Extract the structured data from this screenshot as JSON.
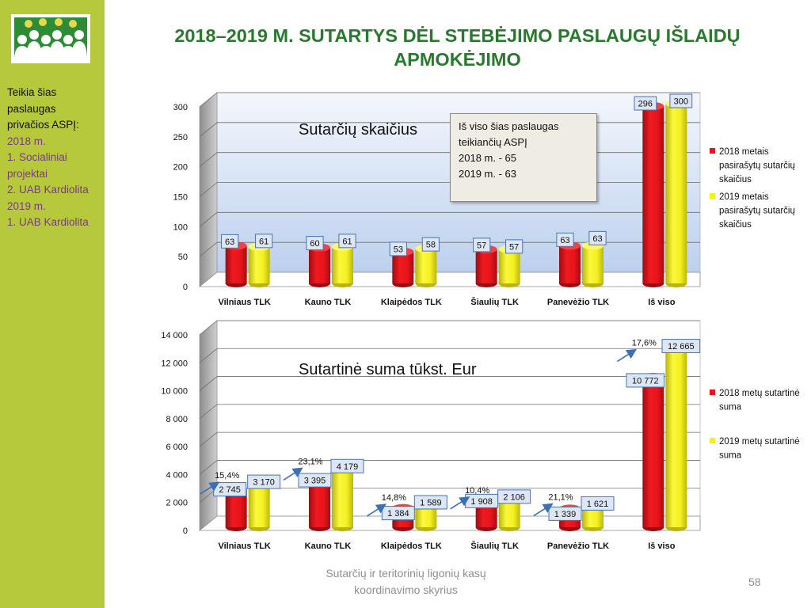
{
  "slide": {
    "title_line1": "2018–2019 M. SUTARTYS DĖL STEBĖJIMO PASLAUGŲ IŠLAIDŲ",
    "title_line2": "APMOKĖJIMO",
    "sidebar_lines": [
      {
        "text": "Teikia šias",
        "style": "black"
      },
      {
        "text": "paslaugas",
        "style": "black"
      },
      {
        "text": "privačios ASPĮ:",
        "style": "black"
      },
      {
        "text": "2018 m.",
        "style": "purple"
      },
      {
        "text": "1. Socialiniai",
        "style": "purple"
      },
      {
        "text": "projektai",
        "style": "purple"
      },
      {
        "text": "2. UAB Kardiolita",
        "style": "purple"
      },
      {
        "text": "2019 m.",
        "style": "purple"
      },
      {
        "text": "1. UAB Kardiolita",
        "style": "purple"
      }
    ],
    "info_box_lines": [
      "Iš viso šias paslaugas",
      "teikiančių ASPĮ",
      "2018 m. - 65",
      "2019 m. - 63"
    ],
    "footer_line1": "Sutarčių ir teritorinių ligonių kasų",
    "footer_line2": "koordinavimo skyrius",
    "page_number": "58",
    "colors": {
      "sidebar": "#b5c93a",
      "title": "#2a7a2e",
      "series_2018": "#e8141b",
      "series_2019": "#f3f020",
      "label_bg": "#dde6f4",
      "label_border": "#4a71b3",
      "arrow": "#3c6fb8"
    }
  },
  "chart_data": [
    {
      "type": "bar",
      "title": "Sutarčių skaičius",
      "categories": [
        "Vilniaus TLK",
        "Kauno TLK",
        "Klaipėdos TLK",
        "Šiaulių TLK",
        "Panevėžio TLK",
        "Iš viso"
      ],
      "series": [
        {
          "name": "2018 metais pasirašytų sutarčių skaičius",
          "legend_lines": [
            "2018 metais",
            "pasirašytų sutarčių",
            "skaičius"
          ],
          "values": [
            63,
            60,
            53,
            57,
            63,
            296
          ],
          "labels": [
            "63",
            "60",
            "53",
            "57",
            "63",
            "296"
          ]
        },
        {
          "name": "2019 metais pasirašytų sutarčių skaičius",
          "legend_lines": [
            "2019 metais",
            "pasirašytų sutarčių",
            "skaičius"
          ],
          "values": [
            61,
            61,
            58,
            57,
            63,
            300
          ],
          "labels": [
            "61",
            "61",
            "58",
            "57",
            "63",
            "300"
          ]
        }
      ],
      "ylim": [
        0,
        300
      ],
      "yticks": [
        0,
        50,
        100,
        150,
        200,
        250,
        300
      ],
      "ytick_labels": [
        "0",
        "50",
        "100",
        "150",
        "200",
        "250",
        "300"
      ],
      "grid": true,
      "legend": "right"
    },
    {
      "type": "bar",
      "title": "Sutartinė suma tūkst. Eur",
      "categories": [
        "Vilniaus TLK",
        "Kauno TLK",
        "Klaipėdos TLK",
        "Šiaulių TLK",
        "Panevėžio TLK",
        "Iš viso"
      ],
      "series": [
        {
          "name": "2018 metų sutartinė suma",
          "legend_lines": [
            "2018 metų sutartinė",
            "suma"
          ],
          "values": [
            2745,
            3395,
            1384,
            1908,
            1339,
            10772
          ],
          "labels": [
            "2 745",
            "3 395",
            "1 384",
            "1 908",
            "1 339",
            "10 772"
          ]
        },
        {
          "name": "2019 metų sutartinė suma",
          "legend_lines": [
            "2019 metų sutartinė",
            "suma"
          ],
          "values": [
            3170,
            4179,
            1589,
            2106,
            1621,
            12665
          ],
          "labels": [
            "3 170",
            "4 179",
            "1 589",
            "2 106",
            "1 621",
            "12 665"
          ]
        }
      ],
      "growth_labels": [
        "15,4%",
        "23,1%",
        "14,8%",
        "10,4%",
        "21,1%",
        "17,6%"
      ],
      "ylim": [
        0,
        14000
      ],
      "yticks": [
        0,
        2000,
        4000,
        6000,
        8000,
        10000,
        12000,
        14000
      ],
      "ytick_labels": [
        "0",
        "2 000",
        "4 000",
        "6 000",
        "8 000",
        "10 000",
        "12 000",
        "14 000"
      ],
      "grid": true,
      "legend": "right"
    }
  ]
}
